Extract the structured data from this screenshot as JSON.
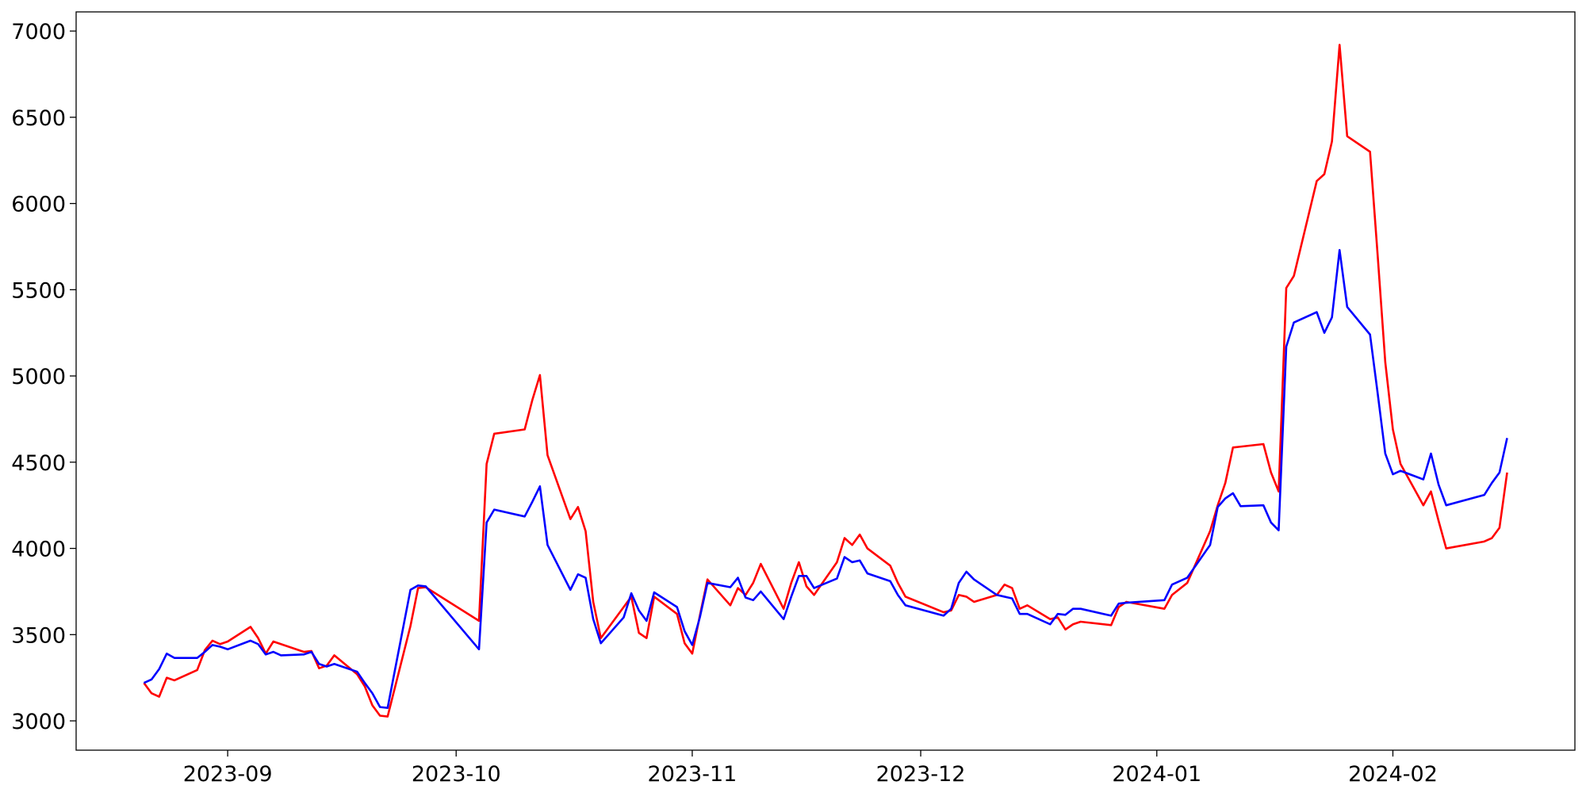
{
  "chart_data": {
    "type": "line",
    "x": [
      -11,
      -10,
      -9,
      -8,
      -7,
      -4,
      -3,
      -2,
      -1,
      0,
      3,
      4,
      5,
      6,
      7,
      10,
      11,
      12,
      13,
      14,
      17,
      18,
      19,
      20,
      21,
      24,
      25,
      26,
      33,
      34,
      35,
      39,
      40,
      41,
      42,
      45,
      46,
      47,
      48,
      49,
      52,
      53,
      54,
      55,
      56,
      59,
      60,
      61,
      62,
      63,
      66,
      67,
      68,
      69,
      70,
      73,
      74,
      75,
      76,
      77,
      80,
      81,
      82,
      83,
      84,
      87,
      88,
      89,
      94,
      95,
      96,
      97,
      98,
      101,
      102,
      103,
      104,
      105,
      108,
      109,
      110,
      111,
      112,
      116,
      117,
      118,
      123,
      124,
      126,
      129,
      130,
      131,
      132,
      133,
      136,
      137,
      138,
      139,
      140,
      143,
      144,
      145,
      146,
      147,
      150,
      151,
      152,
      153,
      154,
      157,
      158,
      159,
      160,
      165,
      166,
      167,
      168
    ],
    "series": [
      {
        "color": "#ff0000",
        "values": [
          3220,
          3160,
          3140,
          3250,
          3235,
          3295,
          3410,
          3465,
          3445,
          3460,
          3545,
          3480,
          3390,
          3460,
          3445,
          3400,
          3405,
          3305,
          3320,
          3380,
          3270,
          3200,
          3090,
          3030,
          3025,
          3550,
          3770,
          3775,
          3580,
          4490,
          4665,
          4690,
          4860,
          5005,
          4540,
          4170,
          4240,
          4100,
          3690,
          3480,
          3660,
          3720,
          3510,
          3480,
          3720,
          3620,
          3450,
          3390,
          3610,
          3820,
          3670,
          3770,
          3730,
          3800,
          3910,
          3650,
          3800,
          3920,
          3780,
          3730,
          3920,
          4060,
          4020,
          4080,
          4000,
          3900,
          3800,
          3720,
          3630,
          3640,
          3730,
          3720,
          3690,
          3730,
          3790,
          3770,
          3650,
          3670,
          3590,
          3600,
          3530,
          3560,
          3575,
          3555,
          3660,
          3690,
          3650,
          3730,
          3800,
          4100,
          4250,
          4380,
          4585,
          4590,
          4605,
          4440,
          4330,
          5510,
          5580,
          6130,
          6170,
          6360,
          6920,
          6390,
          6300,
          5700,
          5080,
          4690,
          4490,
          4250,
          4330,
          4160,
          4000,
          4040,
          4060,
          4120,
          4440
        ]
      },
      {
        "color": "#0000ff",
        "values": [
          3220,
          3240,
          3300,
          3390,
          3365,
          3365,
          3400,
          3440,
          3430,
          3415,
          3465,
          3445,
          3385,
          3400,
          3380,
          3385,
          3400,
          3330,
          3315,
          3330,
          3285,
          3220,
          3160,
          3080,
          3075,
          3760,
          3785,
          3780,
          3415,
          4150,
          4225,
          4185,
          4270,
          4360,
          4020,
          3760,
          3850,
          3830,
          3590,
          3450,
          3600,
          3740,
          3640,
          3580,
          3745,
          3660,
          3520,
          3440,
          3600,
          3800,
          3775,
          3830,
          3715,
          3700,
          3750,
          3590,
          3720,
          3840,
          3840,
          3770,
          3825,
          3950,
          3920,
          3930,
          3855,
          3810,
          3730,
          3670,
          3610,
          3650,
          3800,
          3865,
          3820,
          3730,
          3720,
          3710,
          3620,
          3620,
          3560,
          3620,
          3615,
          3650,
          3650,
          3610,
          3680,
          3685,
          3700,
          3790,
          3830,
          4020,
          4240,
          4290,
          4320,
          4245,
          4250,
          4150,
          4105,
          5170,
          5310,
          5370,
          5250,
          5340,
          5730,
          5400,
          5240,
          4900,
          4550,
          4430,
          4450,
          4400,
          4550,
          4370,
          4250,
          4310,
          4380,
          4440,
          4640
        ]
      }
    ],
    "xlim": [
      -19.9,
      176.9
    ],
    "xticks": [
      {
        "value": 0,
        "label": "2023-09"
      },
      {
        "value": 30,
        "label": "2023-10"
      },
      {
        "value": 61,
        "label": "2023-11"
      },
      {
        "value": 91,
        "label": "2023-12"
      },
      {
        "value": 122,
        "label": "2024-01"
      },
      {
        "value": 153,
        "label": "2024-02"
      }
    ],
    "ylim": [
      2830,
      7111
    ],
    "yticks": [
      3000,
      3500,
      4000,
      4500,
      5000,
      5500,
      6000,
      6500,
      7000
    ]
  }
}
